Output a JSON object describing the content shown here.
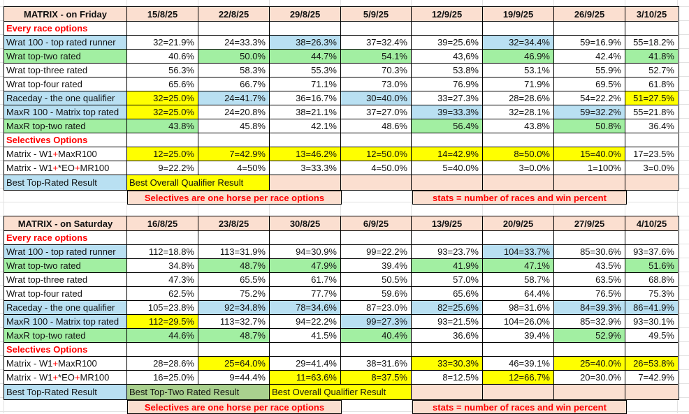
{
  "colors": {
    "header_pink": "#FBDFD0",
    "highlight_blue": "#B9E0F2",
    "highlight_green": "#A2EFA2",
    "highlight_yellow": "#FFFF00",
    "banner_green": "#A9D08E",
    "accent_red": "#FF0000",
    "grid_black": "#000000",
    "faint_grid": "#E2E2E2"
  },
  "tables": [
    {
      "id": "friday",
      "title": "MATRIX - on Friday",
      "dates": [
        "15/8/25",
        "22/8/25",
        "29/8/25",
        "5/9/25",
        "12/9/25",
        "19/9/25",
        "26/9/25",
        "3/10/25"
      ],
      "rows": [
        {
          "kind": "section",
          "label": "Every race options"
        },
        {
          "kind": "data",
          "label": "Wrat 100 - top rated runner",
          "label_bg": "blue",
          "values": [
            "32=21.9%",
            "24=33.3%",
            "38=26.3%",
            "37=32.4%",
            "39=25.6%",
            "32=34.4%",
            "59=16.9%",
            "55=18.2%"
          ],
          "bgs": [
            null,
            null,
            "blue",
            null,
            null,
            "blue",
            null,
            null
          ]
        },
        {
          "kind": "data",
          "label": "Wrat top-two rated",
          "label_bg": "green",
          "values": [
            "40.6%",
            "50.0%",
            "44.7%",
            "54.1%",
            "43,6%",
            "46.9%",
            "42.4%",
            "41.8%"
          ],
          "bgs": [
            null,
            "green",
            "green",
            "green",
            null,
            "green",
            null,
            "green"
          ]
        },
        {
          "kind": "data",
          "label": "Wrat top-three rated",
          "label_bg": null,
          "values": [
            "56.3%",
            "58.3%",
            "55.3%",
            "70.3%",
            "53.8%",
            "53.1%",
            "55.9%",
            "52.7%"
          ],
          "bgs": [
            null,
            null,
            null,
            null,
            null,
            null,
            null,
            null
          ]
        },
        {
          "kind": "data",
          "label": "Wrat top-four rated",
          "label_bg": null,
          "values": [
            "65.6%",
            "66.7%",
            "71.1%",
            "73.0%",
            "76.9%",
            "71.9%",
            "69.5%",
            "61.8%"
          ],
          "bgs": [
            null,
            null,
            null,
            null,
            null,
            null,
            null,
            null
          ]
        },
        {
          "kind": "data",
          "label": "Raceday - the one qualifier",
          "label_bg": "blue",
          "values": [
            "32=25.0%",
            "24=41.7%",
            "36=16.7%",
            "30=40.0%",
            "33=27.3%",
            "28=28.6%",
            "54=22.2%",
            "51=27.5%"
          ],
          "bgs": [
            "yellow",
            "blue",
            null,
            "blue",
            null,
            null,
            null,
            "yellow"
          ]
        },
        {
          "kind": "data",
          "label": "MaxR 100 - Matrix top rated",
          "label_bg": "blue",
          "values": [
            "32=25.0%",
            "24=20.8%",
            "38=21.1%",
            "37=27.0%",
            "39=33.3%",
            "32=28.1%",
            "59=32.2%",
            "55=21.8%"
          ],
          "bgs": [
            "yellow",
            null,
            null,
            null,
            "blue",
            null,
            "blue",
            null
          ]
        },
        {
          "kind": "data",
          "label": "MaxR top-two rated",
          "label_bg": "green",
          "values": [
            "43.8%",
            "45.8%",
            "42.1%",
            "48.6%",
            "56.4%",
            "43.8%",
            "50.8%",
            "36.4%"
          ],
          "bgs": [
            "green",
            null,
            null,
            null,
            "green",
            null,
            "green",
            null
          ]
        },
        {
          "kind": "section",
          "label": "Selectives Options"
        },
        {
          "kind": "data",
          "label": [
            [
              "Matrix - W1",
              "k"
            ],
            [
              "+",
              "r"
            ],
            [
              "MaxR100",
              "k"
            ]
          ],
          "label_bg": null,
          "values": [
            "12=25.0%",
            "7=42.9%",
            "13=46.2%",
            "12=50.0%",
            "14=42.9%",
            "8=50.0%",
            "15=40.0%",
            "17=23.5%"
          ],
          "bgs": [
            "yellow",
            "yellow",
            "yellow",
            "yellow",
            "yellow",
            "yellow",
            "yellow",
            null
          ]
        },
        {
          "kind": "data",
          "label": [
            [
              "Matrix - W1",
              "k"
            ],
            [
              "+",
              "r"
            ],
            [
              "*EO",
              "k"
            ],
            [
              "+",
              "r"
            ],
            [
              "MR100",
              "k"
            ]
          ],
          "label_bg": null,
          "values": [
            "9=22.2%",
            "4=50%",
            "3=33.3%",
            "4=50.0%",
            "5=40.0%",
            "3=0.0%",
            "1=100%",
            "3=0.0%"
          ],
          "bgs": [
            null,
            null,
            null,
            null,
            null,
            null,
            null,
            null
          ]
        },
        {
          "kind": "best",
          "label": "Best Top-Rated Result",
          "label_bg": "blue",
          "blocks": [
            {
              "t": "Best Overall Qualifier Result",
              "bg": "yellow",
              "span": 2
            },
            {
              "t": "",
              "bg": "pink",
              "span": 1
            },
            {
              "t": "",
              "bg": "pink",
              "span": 1
            },
            {
              "t": "",
              "bg": "pink",
              "span": 1
            },
            {
              "t": "",
              "bg": "pink",
              "span": 1
            },
            {
              "t": "",
              "bg": "pink",
              "span": 1
            },
            {
              "t": "",
              "bg": "pink",
              "span": 1
            }
          ]
        },
        {
          "kind": "footer",
          "blocks": [
            {
              "t": "Selectives are one horse per race options",
              "bg": "pink",
              "span": 3
            },
            {
              "t": "",
              "bg": null,
              "span": 1
            },
            {
              "t": "stats = number of races and win percent",
              "bg": "pink",
              "span": 3
            },
            {
              "t": "",
              "bg": null,
              "span": 1
            }
          ]
        }
      ]
    },
    {
      "id": "saturday",
      "title": "MATRIX - on Saturday",
      "dates": [
        "16/8/25",
        "23/8/25",
        "30/8/25",
        "6/9/25",
        "13/9/25",
        "20/9/25",
        "27/9/25",
        "4/10/25"
      ],
      "rows": [
        {
          "kind": "section",
          "label": "Every race options"
        },
        {
          "kind": "data",
          "label": "Wrat 100 - top rated runner",
          "label_bg": "blue",
          "values": [
            "112=18.8%",
            "113=31.9%",
            "94=30.9%",
            "99=22.2%",
            "93=23.7%",
            "104=33.7%",
            "85=30.6%",
            "93=37.6%"
          ],
          "bgs": [
            null,
            null,
            null,
            null,
            null,
            "blue",
            null,
            null
          ]
        },
        {
          "kind": "data",
          "label": "Wrat top-two rated",
          "label_bg": "green",
          "values": [
            "34.8%",
            "48.7%",
            "47.9%",
            "39.4%",
            "41.9%",
            "47.1%",
            "43.5%",
            "51.6%"
          ],
          "bgs": [
            null,
            "green",
            "green",
            null,
            "green",
            "green",
            null,
            "green"
          ]
        },
        {
          "kind": "data",
          "label": "Wrat top-three rated",
          "label_bg": null,
          "values": [
            "47.3%",
            "65.5%",
            "61.7%",
            "50.5%",
            "57.0%",
            "58.7%",
            "63.5%",
            "68.8%"
          ],
          "bgs": [
            null,
            null,
            null,
            null,
            null,
            null,
            null,
            null
          ]
        },
        {
          "kind": "data",
          "label": "Wrat top-four rated",
          "label_bg": null,
          "values": [
            "62.5%",
            "75.2%",
            "77.7%",
            "59.6%",
            "65.6%",
            "64.4%",
            "76.5%",
            "75.3%"
          ],
          "bgs": [
            null,
            null,
            null,
            null,
            null,
            null,
            null,
            null
          ]
        },
        {
          "kind": "data",
          "label": "Raceday - the one qualifier",
          "label_bg": "blue",
          "values": [
            "105=23.8%",
            "92=34.8%",
            "78=34.6%",
            "87=23.0%",
            "82=25.6%",
            "98=31.6%",
            "84=39.3%",
            "86=41.9%"
          ],
          "bgs": [
            null,
            "blue",
            "blue",
            null,
            "blue",
            null,
            "blue",
            "blue"
          ]
        },
        {
          "kind": "data",
          "label": "MaxR 100 - Matrix top rated",
          "label_bg": "blue",
          "values": [
            "112=29.5%",
            "113=32.7%",
            "94=22.2%",
            "99=27.3%",
            "93=21.5%",
            "104=26.0%",
            "85=32.9%",
            "93=30.1%"
          ],
          "bgs": [
            "yellow",
            null,
            null,
            "blue",
            null,
            null,
            null,
            null
          ]
        },
        {
          "kind": "data",
          "label": "MaxR top-two rated",
          "label_bg": "green",
          "values": [
            "44.6%",
            "48.7%",
            "41.5%",
            "40.4%",
            "36.6%",
            "39.4%",
            "52.9%",
            "49.5%"
          ],
          "bgs": [
            "green",
            "green",
            null,
            "green",
            null,
            null,
            "green",
            null
          ]
        },
        {
          "kind": "section",
          "label": "Selectives Options"
        },
        {
          "kind": "data",
          "label": [
            [
              "Matrix - W1",
              "k"
            ],
            [
              "+",
              "r"
            ],
            [
              "MaxR100",
              "k"
            ]
          ],
          "label_bg": null,
          "values": [
            "28=28.6%",
            "25=64.0%",
            "29=41.4%",
            "38=31.6%",
            "33=30.3%",
            "46=39.1%",
            "25=40.0%",
            "26=53.8%"
          ],
          "bgs": [
            null,
            "yellow",
            null,
            null,
            "yellow",
            null,
            "yellow",
            "yellow"
          ]
        },
        {
          "kind": "data",
          "label": [
            [
              "Matrix - W1",
              "k"
            ],
            [
              "+",
              "r"
            ],
            [
              "*EO",
              "k"
            ],
            [
              "+",
              "r"
            ],
            [
              "MR100",
              "k"
            ]
          ],
          "label_bg": null,
          "values": [
            "16=25.0%",
            "9=44.4%",
            "11=63.6%",
            "8=37.5%",
            "8=12.5%",
            "12=66.7%",
            "20=30.0%",
            "7=42.9%"
          ],
          "bgs": [
            null,
            null,
            "yellow",
            "yellow",
            null,
            "yellow",
            null,
            null
          ]
        },
        {
          "kind": "best",
          "label": "Best Top-Rated Result",
          "label_bg": "blue",
          "blocks": [
            {
              "t": "Best Top-Two Rated Result",
              "bg": "dgreen",
              "span": 2
            },
            {
              "t": "Best Overall Qualifier Result",
              "bg": "yellow",
              "span": 2
            },
            {
              "t": "",
              "bg": "pink",
              "span": 1
            },
            {
              "t": "",
              "bg": "pink",
              "span": 1
            },
            {
              "t": "",
              "bg": "pink",
              "span": 1
            },
            {
              "t": "",
              "bg": "pink",
              "span": 1
            }
          ]
        },
        {
          "kind": "footer",
          "blocks": [
            {
              "t": "Selectives are one horse per race options",
              "bg": "pink",
              "span": 3
            },
            {
              "t": "",
              "bg": null,
              "span": 1
            },
            {
              "t": "stats = number of races and win percent",
              "bg": "pink",
              "span": 3
            },
            {
              "t": "",
              "bg": null,
              "span": 1
            }
          ]
        }
      ]
    }
  ]
}
